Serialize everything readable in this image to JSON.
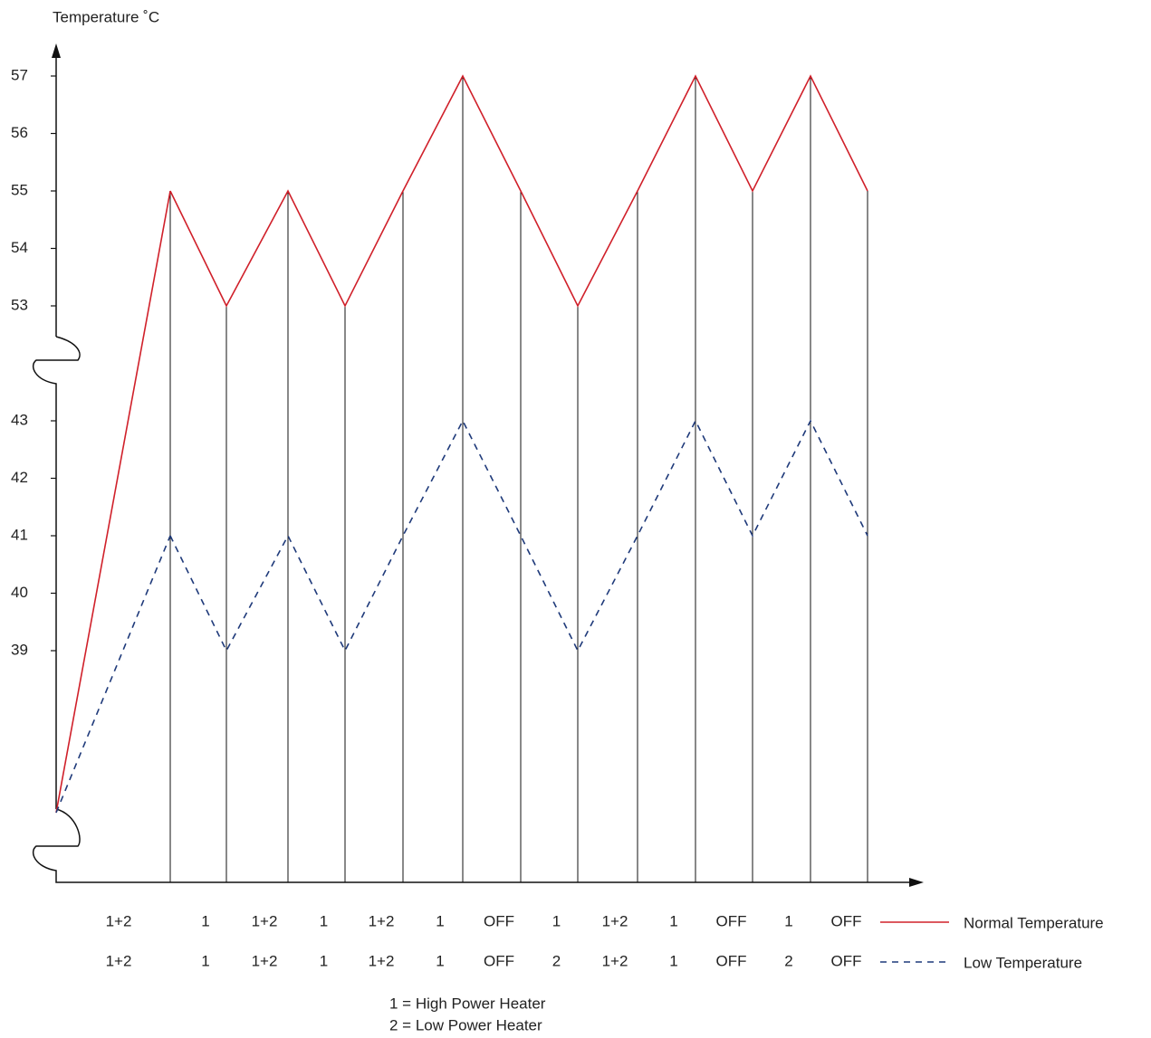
{
  "chart_data": {
    "type": "line",
    "y_label": "Temperature ˚C",
    "ylim": [
      39,
      57
    ],
    "y_break": [
      43,
      53
    ],
    "yticks": [
      39,
      40,
      41,
      42,
      43,
      53,
      54,
      55,
      56,
      57
    ],
    "series": [
      {
        "name": "Normal Temperature",
        "color": "#d0202a",
        "dash": false,
        "heater_states": [
          "1+2",
          "1",
          "1+2",
          "1",
          "1+2",
          "1",
          "OFF",
          "1",
          "1+2",
          "1",
          "OFF",
          "1",
          "OFF"
        ],
        "values": [
          55,
          53,
          55,
          53,
          55,
          57,
          55,
          53,
          55,
          57,
          55,
          57,
          55
        ]
      },
      {
        "name": "Low Temperature",
        "color": "#1f3a7a",
        "dash": true,
        "heater_states": [
          "1+2",
          "1",
          "1+2",
          "1",
          "1+2",
          "1",
          "OFF",
          "2",
          "1+2",
          "1",
          "OFF",
          "2",
          "OFF"
        ],
        "values": [
          41,
          39,
          41,
          39,
          41,
          43,
          41,
          39,
          41,
          43,
          41,
          43,
          41
        ]
      }
    ],
    "notes": [
      "1 = High Power Heater",
      "2 = Low Power Heater"
    ]
  }
}
